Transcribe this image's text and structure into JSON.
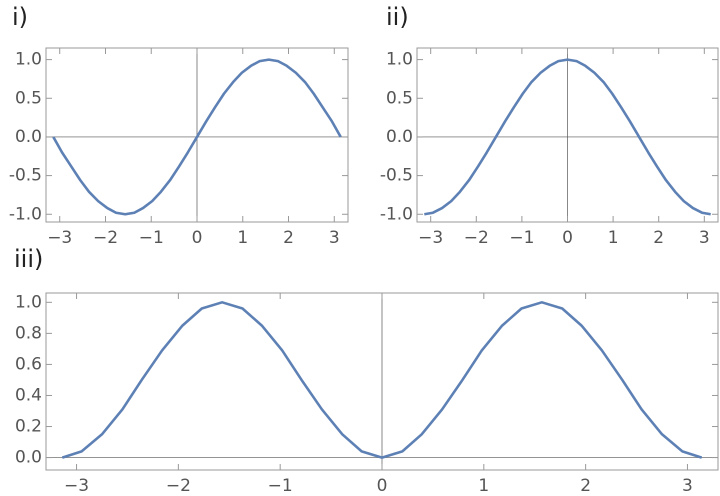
{
  "chart_data": [
    {
      "type": "line",
      "title": "i)",
      "x": [
        -3.14,
        -2.95,
        -2.75,
        -2.55,
        -2.36,
        -2.16,
        -1.96,
        -1.77,
        -1.57,
        -1.37,
        -1.18,
        -0.98,
        -0.79,
        -0.59,
        -0.39,
        -0.2,
        0,
        0.2,
        0.39,
        0.59,
        0.79,
        0.98,
        1.18,
        1.37,
        1.57,
        1.77,
        1.96,
        2.16,
        2.36,
        2.55,
        2.75,
        2.95,
        3.14
      ],
      "values": [
        0,
        -0.2,
        -0.38,
        -0.56,
        -0.71,
        -0.83,
        -0.92,
        -0.98,
        -1,
        -0.98,
        -0.92,
        -0.83,
        -0.71,
        -0.56,
        -0.38,
        -0.2,
        0,
        0.2,
        0.38,
        0.56,
        0.71,
        0.83,
        0.92,
        0.98,
        1,
        0.98,
        0.92,
        0.83,
        0.71,
        0.56,
        0.38,
        0.2,
        0
      ],
      "color": "#5e81b5",
      "xlim": [
        -3.3,
        3.3
      ],
      "ylim": [
        -1.1,
        1.15
      ],
      "xticks": [
        {
          "value": -3,
          "label": "−3"
        },
        {
          "value": -2,
          "label": "−2"
        },
        {
          "value": -1,
          "label": "−1"
        },
        0,
        1,
        2,
        3
      ],
      "yticks": [
        {
          "value": -1,
          "label": "-1.0"
        },
        {
          "value": -0.5,
          "label": "-0.5"
        },
        {
          "value": 0,
          "label": "0.0"
        },
        {
          "value": 0.5,
          "label": "0.5"
        },
        {
          "value": 1,
          "label": "1.0"
        }
      ]
    },
    {
      "type": "line",
      "title": "ii)",
      "x": [
        -3.14,
        -2.95,
        -2.75,
        -2.55,
        -2.36,
        -2.16,
        -1.96,
        -1.77,
        -1.57,
        -1.37,
        -1.18,
        -0.98,
        -0.79,
        -0.59,
        -0.39,
        -0.2,
        0,
        0.2,
        0.39,
        0.59,
        0.79,
        0.98,
        1.18,
        1.37,
        1.57,
        1.77,
        1.96,
        2.16,
        2.36,
        2.55,
        2.75,
        2.95,
        3.14
      ],
      "values": [
        -1,
        -0.98,
        -0.92,
        -0.83,
        -0.71,
        -0.56,
        -0.38,
        -0.2,
        0,
        0.2,
        0.38,
        0.56,
        0.71,
        0.83,
        0.92,
        0.98,
        1,
        0.98,
        0.92,
        0.83,
        0.71,
        0.56,
        0.38,
        0.2,
        0,
        -0.2,
        -0.38,
        -0.56,
        -0.71,
        -0.83,
        -0.92,
        -0.98,
        -1
      ],
      "color": "#5e81b5",
      "xlim": [
        -3.3,
        3.3
      ],
      "ylim": [
        -1.1,
        1.15
      ],
      "xticks": [
        {
          "value": -3,
          "label": "−3"
        },
        {
          "value": -2,
          "label": "−2"
        },
        {
          "value": -1,
          "label": "−1"
        },
        0,
        1,
        2,
        3
      ],
      "yticks": [
        {
          "value": -1,
          "label": "-1.0"
        },
        {
          "value": -0.5,
          "label": "-0.5"
        },
        {
          "value": 0,
          "label": "0.0"
        },
        {
          "value": 0.5,
          "label": "0.5"
        },
        {
          "value": 1,
          "label": "1.0"
        }
      ]
    },
    {
      "type": "line",
      "title": "iii)",
      "x": [
        -3.14,
        -2.95,
        -2.75,
        -2.55,
        -2.36,
        -2.16,
        -1.96,
        -1.77,
        -1.57,
        -1.37,
        -1.18,
        -0.98,
        -0.79,
        -0.59,
        -0.39,
        -0.2,
        0,
        0.2,
        0.39,
        0.59,
        0.79,
        0.98,
        1.18,
        1.37,
        1.57,
        1.77,
        1.96,
        2.16,
        2.36,
        2.55,
        2.75,
        2.95,
        3.14
      ],
      "values": [
        0,
        0.04,
        0.15,
        0.31,
        0.5,
        0.69,
        0.85,
        0.96,
        1,
        0.96,
        0.85,
        0.69,
        0.5,
        0.31,
        0.15,
        0.04,
        0,
        0.04,
        0.15,
        0.31,
        0.5,
        0.69,
        0.85,
        0.96,
        1,
        0.96,
        0.85,
        0.69,
        0.5,
        0.31,
        0.15,
        0.04,
        0
      ],
      "color": "#5e81b5",
      "xlim": [
        -3.3,
        3.3
      ],
      "ylim": [
        -0.08,
        1.06
      ],
      "xticks": [
        {
          "value": -3,
          "label": "−3"
        },
        {
          "value": -2,
          "label": "−2"
        },
        {
          "value": -1,
          "label": "−1"
        },
        0,
        1,
        2,
        3
      ],
      "yticks": [
        {
          "value": 0,
          "label": "0.0"
        },
        {
          "value": 0.2,
          "label": "0.2"
        },
        {
          "value": 0.4,
          "label": "0.4"
        },
        {
          "value": 0.6,
          "label": "0.6"
        },
        {
          "value": 0.8,
          "label": "0.8"
        },
        {
          "value": 1,
          "label": "1.0"
        }
      ]
    }
  ]
}
